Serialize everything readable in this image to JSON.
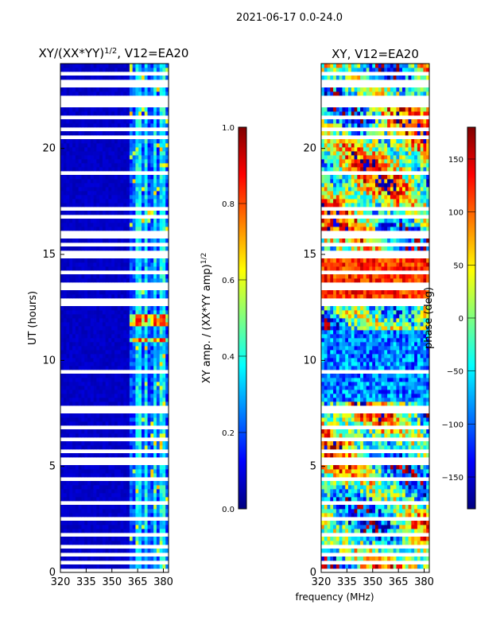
{
  "suptitle": "2021-06-17 0.0-24.0",
  "xlabel_shared": "frequency (MHz)",
  "colors": {
    "bg_masked": "#ffffff",
    "jet_stops": [
      "#00007f",
      "#0000ff",
      "#007fff",
      "#00ffff",
      "#7fff7f",
      "#ffff00",
      "#ff7f00",
      "#ff0000",
      "#7f0000"
    ]
  },
  "chart_data": [
    {
      "type": "heatmap",
      "name": "normalized-amplitude",
      "title_main": "XY/(XX*YY)",
      "title_sup": "1/2",
      "title_tail": ", V12=EA20",
      "xlim": [
        320,
        383
      ],
      "ylim": [
        0,
        24
      ],
      "xticks": [
        320,
        335,
        350,
        365,
        380
      ],
      "yticks": [
        0,
        5,
        10,
        15,
        20
      ],
      "ylabel": "UT (hours)",
      "colorbar": {
        "range": [
          0.0,
          1.0
        ],
        "ticks": [
          0.0,
          0.2,
          0.4,
          0.6,
          0.8,
          1.0
        ],
        "tick_labels": [
          "0.0",
          "0.2",
          "0.4",
          "0.6",
          "0.8",
          "1.0"
        ],
        "label_main": "XY amp. / (XX*YY amp)",
        "label_sup": "1/2"
      },
      "background_value": 0.05,
      "active_band_mhz": [
        360,
        383
      ],
      "band_channels_mhz": [
        365,
        370,
        375,
        380
      ],
      "hot_rows_hours": [
        [
          11.55,
          12.15
        ],
        [
          10.9,
          11.15
        ]
      ]
    },
    {
      "type": "heatmap",
      "name": "xy-phase",
      "title": "XY, V12=EA20",
      "xlim": [
        320,
        383
      ],
      "ylim": [
        0,
        24
      ],
      "xticks": [
        320,
        335,
        350,
        365,
        380
      ],
      "yticks": [
        0,
        5,
        10,
        15,
        20
      ],
      "colorbar": {
        "range": [
          -180,
          180
        ],
        "ticks": [
          -150,
          -100,
          -50,
          0,
          50,
          100,
          150
        ],
        "tick_labels": [
          "−150",
          "−100",
          "−50",
          "0",
          "50",
          "100",
          "150"
        ],
        "label": "phase (deg)"
      }
    }
  ],
  "masked_rows_hours": [
    0.15,
    0.5,
    0.9,
    1.25,
    1.85,
    2.6,
    3.3,
    3.55,
    4.45,
    5.1,
    5.3,
    5.75,
    6.25,
    6.8,
    7.5,
    7.65,
    7.8,
    8.45,
    9.0,
    9.5,
    9.95,
    10.5,
    12.6,
    12.85,
    13.4,
    13.65,
    14.1,
    14.45,
    14.95,
    15.15,
    15.45,
    15.75,
    15.9,
    16.05,
    16.5,
    16.75,
    17.2,
    17.45,
    17.8,
    18.2,
    18.55,
    18.8,
    19.3,
    19.7,
    20.05,
    20.5,
    20.85,
    21.5,
    22.0,
    22.25,
    22.45,
    22.95,
    23.2,
    23.5
  ]
}
